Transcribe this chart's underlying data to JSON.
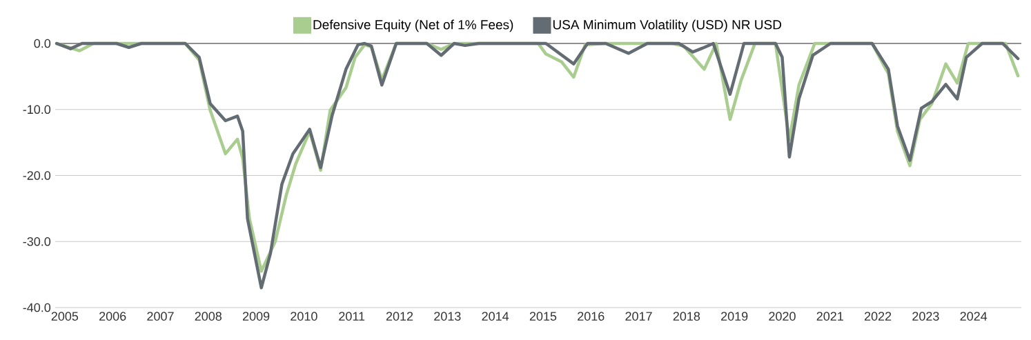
{
  "chart_data": {
    "type": "line",
    "legend": "top",
    "grid": "y",
    "marker": "none",
    "line_style": "solid",
    "xlim": [
      2004.8,
      2025.0
    ],
    "xticks": [
      2005,
      2006,
      2007,
      2008,
      2009,
      2010,
      2011,
      2012,
      2013,
      2014,
      2015,
      2016,
      2017,
      2018,
      2019,
      2020,
      2021,
      2022,
      2023,
      2024
    ],
    "ylim": [
      -40,
      0
    ],
    "yticks": [
      {
        "value": -40,
        "label": "-40.0"
      },
      {
        "value": -30,
        "label": "-30.0"
      },
      {
        "value": -20,
        "label": "-20.0"
      },
      {
        "value": -10,
        "label": "-10.0"
      },
      {
        "value": 0,
        "label": "0.0"
      }
    ],
    "series": [
      {
        "name": "Defensive Equity (Net of 1% Fees)",
        "color": "#a9cc8f",
        "x": [
          2004.83,
          2005.31,
          2005.6,
          2007.52,
          2007.81,
          2008.04,
          2008.36,
          2008.61,
          2008.72,
          2008.86,
          2009.11,
          2009.4,
          2009.63,
          2009.83,
          2010.12,
          2010.35,
          2010.55,
          2010.88,
          2011.07,
          2011.27,
          2011.41,
          2011.63,
          2011.93,
          2012.57,
          2012.87,
          2013.14,
          2014.9,
          2015.06,
          2015.39,
          2015.64,
          2015.88,
          2016.31,
          2017.7,
          2017.94,
          2018.37,
          2018.62,
          2018.91,
          2019.14,
          2019.43,
          2019.86,
          2020.15,
          2020.35,
          2020.68,
          2021.88,
          2022.22,
          2022.41,
          2022.67,
          2022.88,
          2023.13,
          2023.42,
          2023.66,
          2023.89,
          2024.67,
          2024.93
        ],
        "values": [
          0,
          -1.1,
          0,
          0,
          -2.5,
          -10.1,
          -16.7,
          -14.5,
          -17.4,
          -26.5,
          -34.5,
          -30.0,
          -23.0,
          -18.2,
          -13.3,
          -19.2,
          -10.1,
          -6.7,
          -2.1,
          -0.2,
          -0.5,
          -5.5,
          0,
          0,
          -0.9,
          0,
          0,
          -1.6,
          -2.8,
          -5.1,
          -0.2,
          0,
          0,
          -0.4,
          -3.9,
          0,
          -11.5,
          -5.6,
          0,
          0,
          -14.6,
          -6.3,
          0,
          0,
          -4.6,
          -13.3,
          -18.5,
          -11.5,
          -9.1,
          -3.1,
          -6.0,
          0,
          0,
          -4.9
        ]
      },
      {
        "name": "USA Minimum Volatility (USD) NR USD",
        "color": "#636c72",
        "x": [
          2004.83,
          2005.12,
          2005.36,
          2006.08,
          2006.34,
          2006.6,
          2007.52,
          2007.81,
          2008.04,
          2008.36,
          2008.61,
          2008.72,
          2008.82,
          2009.11,
          2009.3,
          2009.54,
          2009.77,
          2010.12,
          2010.35,
          2010.59,
          2010.88,
          2011.13,
          2011.27,
          2011.41,
          2011.63,
          2011.93,
          2012.57,
          2012.87,
          2013.14,
          2013.37,
          2013.66,
          2015.06,
          2015.64,
          2015.93,
          2016.31,
          2016.79,
          2017.18,
          2017.84,
          2018.13,
          2018.37,
          2018.56,
          2018.91,
          2019.2,
          2019.86,
          2020.0,
          2020.15,
          2020.35,
          2020.64,
          2021.01,
          2021.88,
          2022.22,
          2022.41,
          2022.67,
          2022.91,
          2023.13,
          2023.42,
          2023.66,
          2023.85,
          2024.18,
          2024.61,
          2024.93
        ],
        "values": [
          0,
          -0.8,
          0,
          0,
          -0.6,
          0,
          0,
          -2.1,
          -9.1,
          -11.7,
          -11.0,
          -13.3,
          -26.5,
          -37.0,
          -31.8,
          -21.3,
          -16.7,
          -13.0,
          -18.8,
          -10.9,
          -3.9,
          -0.2,
          0,
          -0.4,
          -6.3,
          0,
          0,
          -1.8,
          0,
          -0.3,
          0,
          0,
          -3.1,
          0,
          0,
          -1.5,
          0,
          0,
          -1.3,
          -0.6,
          0,
          -7.7,
          0,
          0,
          -2.1,
          -17.2,
          -8.4,
          -1.8,
          0,
          0,
          -3.9,
          -12.5,
          -17.7,
          -9.8,
          -8.8,
          -6.2,
          -8.4,
          -2.1,
          0,
          0,
          -2.3
        ]
      }
    ]
  }
}
